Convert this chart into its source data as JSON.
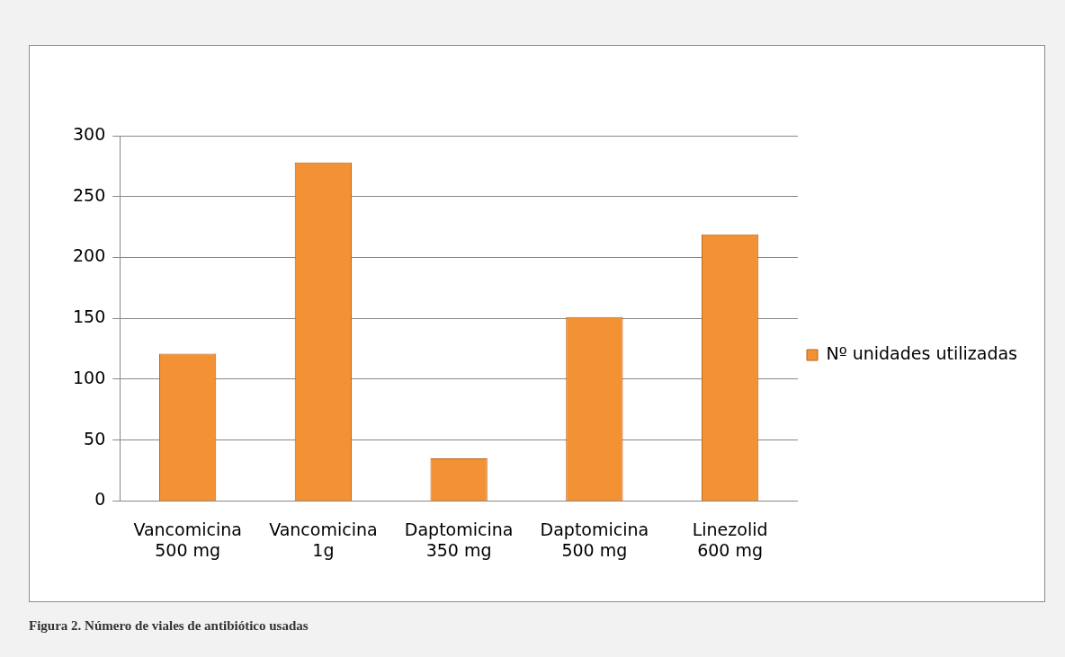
{
  "chart_data": {
    "type": "bar",
    "categories": [
      "Vancomicina 500 mg",
      "Vancomicina 1g",
      "Daptomicina 350 mg",
      "Daptomicina 500 mg",
      "Linezolid 600 mg"
    ],
    "series": [
      {
        "name": "Nº unidades utilizadas",
        "color": "#f39234",
        "values": [
          121,
          278,
          35,
          151,
          219
        ]
      }
    ],
    "ylim": [
      0,
      300
    ],
    "yticks": [
      0,
      50,
      100,
      150,
      200,
      250,
      300
    ],
    "grid": "y",
    "legend": "right",
    "annotations": [
      "Figura 2. Número de viales de antibiótico usadas"
    ]
  }
}
